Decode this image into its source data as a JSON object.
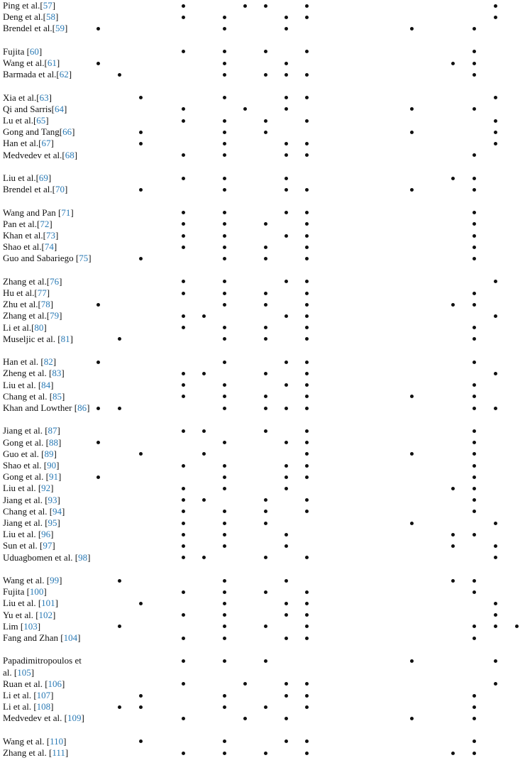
{
  "rows": [
    {
      "pre": "Ping et al.[",
      "ref": "57",
      "post": "]",
      "dots": [
        4,
        7,
        8,
        10,
        19
      ]
    },
    {
      "pre": "Deng et al.[",
      "ref": "58",
      "post": "]",
      "dots": [
        4,
        6,
        9,
        10,
        19
      ]
    },
    {
      "pre": "Brendel et al.[",
      "ref": "59",
      "post": "]",
      "dots": [
        0,
        6,
        9,
        15,
        18
      ]
    },
    {
      "pre": "Fujita [",
      "ref": "60",
      "post": "]",
      "dots": [
        4,
        6,
        8,
        10,
        18
      ]
    },
    {
      "pre": "Wang et al.[",
      "ref": "61",
      "post": "]",
      "dots": [
        0,
        6,
        9,
        17,
        18
      ]
    },
    {
      "pre": "Barmada et al.[",
      "ref": "62",
      "post": "]",
      "dots": [
        1,
        6,
        8,
        9,
        10,
        18
      ]
    },
    {
      "pre": "Xia et al.[",
      "ref": "63",
      "post": "]",
      "dots": [
        2,
        6,
        9,
        10,
        19
      ]
    },
    {
      "pre": "Qi and Sarris[",
      "ref": "64",
      "post": "]",
      "dots": [
        4,
        7,
        9,
        15,
        18
      ]
    },
    {
      "pre": "Lu et al.[",
      "ref": "65",
      "post": "]",
      "dots": [
        4,
        6,
        8,
        10,
        19
      ]
    },
    {
      "pre": "Gong and Tang[",
      "ref": "66",
      "post": "]",
      "dots": [
        2,
        6,
        8,
        15,
        19
      ]
    },
    {
      "pre": "Han et al.[",
      "ref": "67",
      "post": "]",
      "dots": [
        2,
        6,
        9,
        10,
        19
      ]
    },
    {
      "pre": "Medvedev et al.[",
      "ref": "68",
      "post": "]",
      "dots": [
        4,
        6,
        9,
        10,
        18
      ]
    },
    {
      "pre": "Liu et al.[",
      "ref": "69",
      "post": "]",
      "dots": [
        4,
        6,
        9,
        17,
        18
      ]
    },
    {
      "pre": "Brendel et al.[",
      "ref": "70",
      "post": "]",
      "dots": [
        2,
        6,
        9,
        10,
        15,
        18
      ]
    },
    {
      "pre": "Wang and Pan [",
      "ref": "71",
      "post": "]",
      "dots": [
        4,
        6,
        9,
        10,
        18
      ]
    },
    {
      "pre": "Pan et al.[",
      "ref": "72",
      "post": "]",
      "dots": [
        4,
        6,
        8,
        10,
        18
      ]
    },
    {
      "pre": "Khan et al.[",
      "ref": "73",
      "post": "]",
      "dots": [
        4,
        6,
        9,
        10,
        18
      ]
    },
    {
      "pre": "Shao et al.[",
      "ref": "74",
      "post": "]",
      "dots": [
        4,
        6,
        8,
        10,
        18
      ]
    },
    {
      "pre": "Guo and Sabariego [",
      "ref": "75",
      "post": "]",
      "dots": [
        2,
        6,
        8,
        10,
        18
      ]
    },
    {
      "pre": "Zhang et al.[",
      "ref": "76",
      "post": "]",
      "dots": [
        4,
        6,
        9,
        10,
        19
      ]
    },
    {
      "pre": "Hu et al.[",
      "ref": "77",
      "post": "]",
      "dots": [
        4,
        6,
        8,
        10,
        18
      ]
    },
    {
      "pre": "Zhu et al.[",
      "ref": "78",
      "post": "]",
      "dots": [
        0,
        6,
        8,
        10,
        17,
        18
      ]
    },
    {
      "pre": "Zhang et al.[",
      "ref": "79",
      "post": "]",
      "dots": [
        4,
        5,
        9,
        10,
        19
      ]
    },
    {
      "pre": "Li et al.[",
      "ref": "80",
      "post": "]",
      "dots": [
        4,
        6,
        8,
        10,
        18
      ]
    },
    {
      "pre": "Museljic et al. [",
      "ref": "81",
      "post": "]",
      "dots": [
        1,
        6,
        8,
        10,
        18
      ]
    },
    {
      "pre": "Han et al. [",
      "ref": "82",
      "post": "]",
      "dots": [
        0,
        6,
        9,
        10,
        18
      ]
    },
    {
      "pre": "Zheng et al. [",
      "ref": "83",
      "post": "]",
      "dots": [
        4,
        5,
        8,
        10,
        19
      ]
    },
    {
      "pre": "Liu et al. [",
      "ref": "84",
      "post": "]",
      "dots": [
        4,
        6,
        9,
        10,
        18
      ]
    },
    {
      "pre": "Chang et al. [",
      "ref": "85",
      "post": "]",
      "dots": [
        4,
        6,
        8,
        10,
        15,
        18
      ]
    },
    {
      "pre": "Khan and Lowther [",
      "ref": "86",
      "post": "]",
      "dots": [
        0,
        1,
        6,
        8,
        9,
        10,
        18,
        19
      ]
    },
    {
      "pre": "Jiang et al. [",
      "ref": "87",
      "post": "]",
      "dots": [
        4,
        5,
        8,
        10,
        18
      ]
    },
    {
      "pre": "Gong et al. [",
      "ref": "88",
      "post": "]",
      "dots": [
        0,
        6,
        9,
        10,
        18
      ]
    },
    {
      "pre": "Guo et al. [",
      "ref": "89",
      "post": "]",
      "dots": [
        2,
        5,
        10,
        15,
        18
      ]
    },
    {
      "pre": "Shao et al. [",
      "ref": "90",
      "post": "]",
      "dots": [
        4,
        6,
        9,
        10,
        18
      ]
    },
    {
      "pre": "Gong et al. [",
      "ref": "91",
      "post": "]",
      "dots": [
        0,
        6,
        9,
        10,
        18
      ]
    },
    {
      "pre": "Liu et al. [",
      "ref": "92",
      "post": "]",
      "dots": [
        4,
        6,
        9,
        17,
        18
      ]
    },
    {
      "pre": "Jiang et al. [",
      "ref": "93",
      "post": "]",
      "dots": [
        4,
        5,
        8,
        10,
        18
      ]
    },
    {
      "pre": "Chang et al. [",
      "ref": "94",
      "post": "]",
      "dots": [
        4,
        6,
        8,
        10,
        18
      ]
    },
    {
      "pre": "Jiang et al. [",
      "ref": "95",
      "post": "]",
      "dots": [
        4,
        6,
        8,
        15,
        19
      ]
    },
    {
      "pre": "Liu et al. [",
      "ref": "96",
      "post": "]",
      "dots": [
        4,
        6,
        9,
        17,
        18
      ]
    },
    {
      "pre": "Sun et al. [",
      "ref": "97",
      "post": "]",
      "dots": [
        4,
        6,
        9,
        17,
        19
      ]
    },
    {
      "pre": "Uduagbomen et al. [",
      "ref": "98",
      "post": "]",
      "dots": [
        4,
        5,
        8,
        10,
        19
      ]
    },
    {
      "pre": "Wang et al. [",
      "ref": "99",
      "post": "]",
      "dots": [
        1,
        6,
        9,
        17,
        18
      ]
    },
    {
      "pre": "Fujita [",
      "ref": "100",
      "post": "]",
      "dots": [
        4,
        6,
        8,
        10,
        18
      ]
    },
    {
      "pre": "Liu et al. [",
      "ref": "101",
      "post": "]",
      "dots": [
        2,
        6,
        9,
        10,
        19
      ]
    },
    {
      "pre": "Yu et al. [",
      "ref": "102",
      "post": "]",
      "dots": [
        4,
        6,
        9,
        10,
        19
      ]
    },
    {
      "pre": "Lim [",
      "ref": "103",
      "post": "]",
      "dots": [
        1,
        6,
        8,
        10,
        18,
        19,
        20
      ]
    },
    {
      "pre": "Fang and Zhan [",
      "ref": "104",
      "post": "]",
      "dots": [
        4,
        6,
        9,
        10,
        18
      ]
    },
    {
      "pre": "Papadimitropoulos et al. [",
      "ref": "105",
      "post": "]",
      "dots": [
        4,
        6,
        8,
        15,
        19
      ]
    },
    {
      "pre": "Ruan et al. [",
      "ref": "106",
      "post": "]",
      "dots": [
        4,
        7,
        9,
        10,
        19
      ]
    },
    {
      "pre": "Li et al. [",
      "ref": "107",
      "post": "]",
      "dots": [
        2,
        6,
        9,
        10,
        18
      ]
    },
    {
      "pre": "Li et al. [",
      "ref": "108",
      "post": "]",
      "dots": [
        1,
        2,
        6,
        8,
        10,
        18
      ]
    },
    {
      "pre": "Medvedev et al. [",
      "ref": "109",
      "post": "]",
      "dots": [
        4,
        7,
        9,
        15,
        18
      ]
    },
    {
      "pre": "Wang et al. [",
      "ref": "110",
      "post": "]",
      "dots": [
        2,
        6,
        9,
        10,
        18
      ]
    },
    {
      "pre": "Zhang et al. [",
      "ref": "111",
      "post": "]",
      "dots": [
        4,
        6,
        8,
        10,
        17,
        18
      ]
    }
  ]
}
